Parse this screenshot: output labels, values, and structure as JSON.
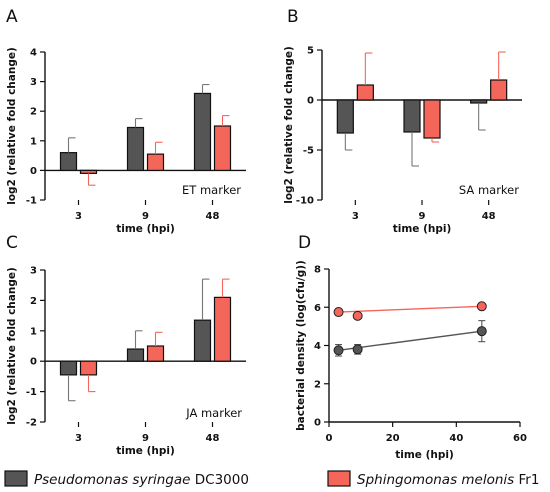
{
  "colors": {
    "pseudomonas": "#555555",
    "sphingomonas": "#f4655a",
    "pseudomonas_error": "#777777",
    "sphingomonas_error": "#f4655a",
    "axis": "#111111"
  },
  "legend": {
    "items": [
      {
        "label": "Pseudomonas syringae",
        "suffix": " DC3000"
      },
      {
        "label": "Sphingomonas melonis",
        "suffix": " Fr1"
      }
    ]
  },
  "chart_data": [
    {
      "panel": "A",
      "type": "bar",
      "marker_label": "ET marker",
      "xlabel": "time (hpi)",
      "ylabel": "log2 (relative fold change)",
      "ylim": [
        -1,
        4
      ],
      "yticks": [
        -1,
        0,
        1,
        2,
        3,
        4
      ],
      "categories": [
        "3",
        "9",
        "48"
      ],
      "series": [
        {
          "key": "pseudomonas",
          "values": [
            0.6,
            1.45,
            2.6
          ],
          "errors": [
            0.5,
            0.3,
            0.3
          ]
        },
        {
          "key": "sphingomonas",
          "values": [
            -0.1,
            0.55,
            1.5
          ],
          "errors": [
            0.4,
            0.4,
            0.35
          ]
        }
      ]
    },
    {
      "panel": "B",
      "type": "bar",
      "marker_label": "SA marker",
      "xlabel": "time (hpi)",
      "ylabel": "log2 (relative fold change)",
      "ylim": [
        -10,
        5
      ],
      "yticks": [
        -10,
        -5,
        0,
        5
      ],
      "categories": [
        "3",
        "9",
        "48"
      ],
      "series": [
        {
          "key": "pseudomonas",
          "values": [
            -3.3,
            -3.2,
            -0.3
          ],
          "errors": [
            1.7,
            3.4,
            2.7
          ]
        },
        {
          "key": "sphingomonas",
          "values": [
            1.5,
            -3.8,
            2.0
          ],
          "errors": [
            3.2,
            0.4,
            2.8
          ]
        }
      ]
    },
    {
      "panel": "C",
      "type": "bar",
      "marker_label": "JA marker",
      "xlabel": "time (hpi)",
      "ylabel": "log2 (relative fold change)",
      "ylim": [
        -2,
        3
      ],
      "yticks": [
        -2,
        -1,
        0,
        1,
        2,
        3
      ],
      "categories": [
        "3",
        "9",
        "48"
      ],
      "series": [
        {
          "key": "pseudomonas",
          "values": [
            -0.45,
            0.4,
            1.35
          ],
          "errors": [
            0.85,
            0.6,
            1.35
          ]
        },
        {
          "key": "sphingomonas",
          "values": [
            -0.45,
            0.5,
            2.1
          ],
          "errors": [
            0.55,
            0.45,
            0.6
          ]
        }
      ]
    },
    {
      "panel": "D",
      "type": "line",
      "xlabel": "time (hpi)",
      "ylabel": "bacterial density (log(cfu/g))",
      "xlim": [
        0,
        60
      ],
      "xticks": [
        0,
        20,
        40,
        60
      ],
      "ylim": [
        0,
        8
      ],
      "yticks": [
        0,
        2,
        4,
        6,
        8
      ],
      "series": [
        {
          "key": "pseudomonas",
          "x": [
            3,
            9,
            48
          ],
          "y": [
            3.75,
            3.8,
            4.75
          ],
          "errors": [
            0.3,
            0.25,
            0.55
          ]
        },
        {
          "key": "sphingomonas",
          "x": [
            3,
            9,
            48
          ],
          "y": [
            5.75,
            5.55,
            6.05
          ],
          "errors": [
            0.1,
            0.1,
            0.1
          ]
        }
      ]
    }
  ]
}
